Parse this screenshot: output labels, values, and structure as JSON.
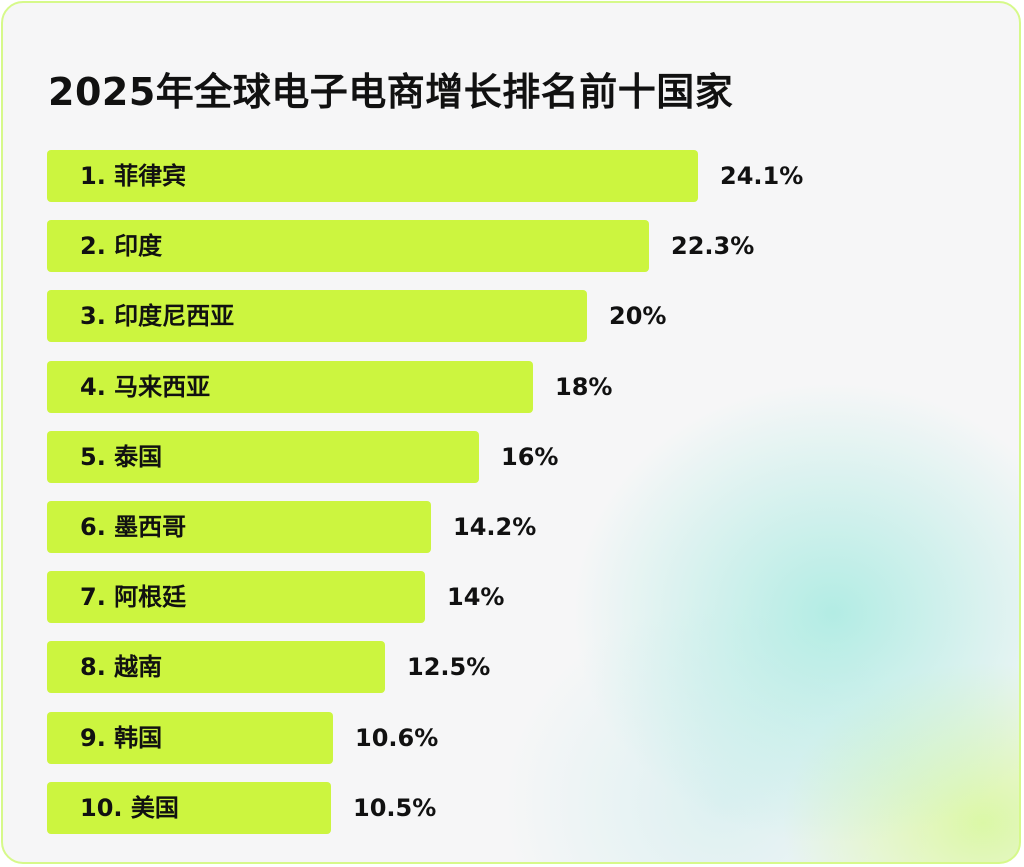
{
  "title": "2025年全球电子电商增长排名前十国家",
  "colors": {
    "bar": "#ccf53f",
    "text": "#111111",
    "border": "#d6f98a",
    "background": "#f6f6f7"
  },
  "chart_data": {
    "type": "bar",
    "orientation": "horizontal",
    "title": "2025年全球电子电商增长排名前十国家",
    "categories": [
      "1. 菲律宾",
      "2. 印度",
      "3. 印度尼西亚",
      "4. 马来西亚",
      "5. 泰国",
      "6. 墨西哥",
      "7. 阿根廷",
      "8. 越南",
      "9. 韩国",
      "10. 美国"
    ],
    "values": [
      24.1,
      22.3,
      20,
      18,
      16,
      14.2,
      14,
      12.5,
      10.6,
      10.5
    ],
    "value_labels": [
      "24.1%",
      "22.3%",
      "20%",
      "18%",
      "16%",
      "14.2%",
      "14%",
      "12.5%",
      "10.6%",
      "10.5%"
    ],
    "unit": "%",
    "grid": false,
    "legend": "none"
  }
}
